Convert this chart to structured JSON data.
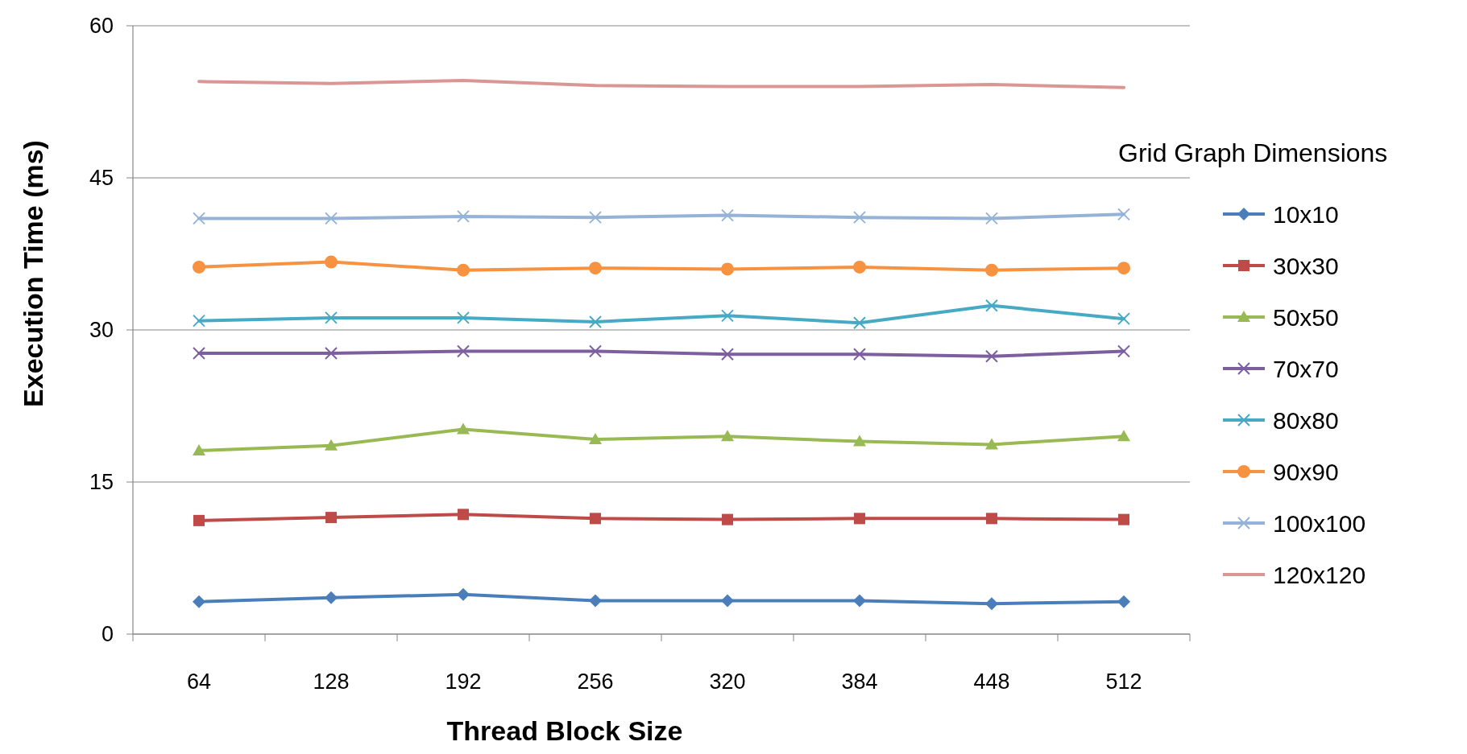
{
  "chart_data": {
    "type": "line",
    "xlabel": "Thread Block Size",
    "ylabel": "Execution Time (ms)",
    "legend_title": "Grid Graph Dimensions",
    "categories": [
      "64",
      "128",
      "192",
      "256",
      "320",
      "384",
      "448",
      "512"
    ],
    "ylim": [
      0,
      60
    ],
    "yticks": [
      0,
      15,
      30,
      45,
      60
    ],
    "grid": "y",
    "legend": "right",
    "series": [
      {
        "name": "10x10",
        "color": "#4a7ebb",
        "marker": "diamond",
        "values": [
          3.2,
          3.6,
          3.9,
          3.3,
          3.3,
          3.3,
          3.0,
          3.2
        ]
      },
      {
        "name": "30x30",
        "color": "#be4b48",
        "marker": "square",
        "values": [
          11.2,
          11.5,
          11.8,
          11.4,
          11.3,
          11.4,
          11.4,
          11.3
        ]
      },
      {
        "name": "50x50",
        "color": "#98b954",
        "marker": "triangle",
        "values": [
          18.1,
          18.6,
          20.2,
          19.2,
          19.5,
          19.0,
          18.7,
          19.5
        ]
      },
      {
        "name": "70x70",
        "color": "#7d5fa0",
        "marker": "cross",
        "values": [
          27.7,
          27.7,
          27.9,
          27.9,
          27.6,
          27.6,
          27.4,
          27.9
        ]
      },
      {
        "name": "80x80",
        "color": "#46aac5",
        "marker": "cross",
        "values": [
          30.9,
          31.2,
          31.2,
          30.8,
          31.4,
          30.7,
          32.4,
          31.1
        ]
      },
      {
        "name": "90x90",
        "color": "#f69240",
        "marker": "circle",
        "values": [
          36.2,
          36.7,
          35.9,
          36.1,
          36.0,
          36.2,
          35.9,
          36.1
        ]
      },
      {
        "name": "100x100",
        "color": "#95b3d7",
        "marker": "cross",
        "values": [
          41.0,
          41.0,
          41.2,
          41.1,
          41.3,
          41.1,
          41.0,
          41.4
        ]
      },
      {
        "name": "120x120",
        "color": "#d99694",
        "marker": "none",
        "values": [
          54.5,
          54.3,
          54.6,
          54.1,
          54.0,
          54.0,
          54.2,
          53.9
        ]
      }
    ]
  }
}
